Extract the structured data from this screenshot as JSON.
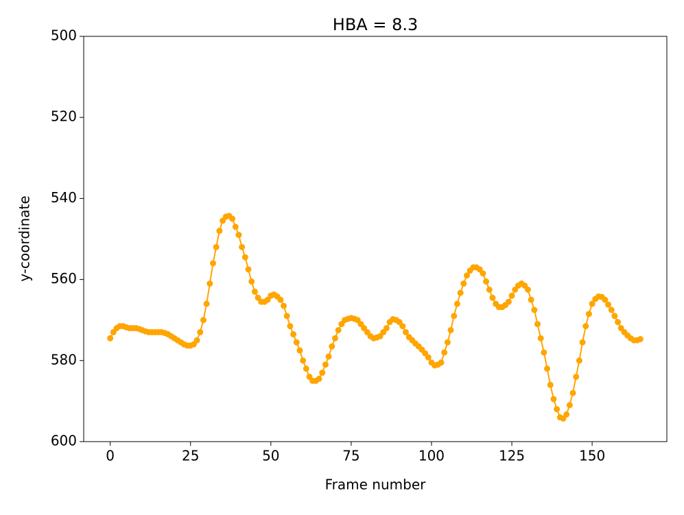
{
  "chart_data": {
    "type": "line",
    "title": "HBA = 8.3",
    "x_label": "Frame number",
    "y_label": "y-coordinate",
    "xlim": [
      -8.25,
      173.25
    ],
    "ylim": [
      600,
      500
    ],
    "xticks": [
      0,
      25,
      50,
      75,
      100,
      125,
      150
    ],
    "yticks": [
      500,
      520,
      540,
      560,
      580,
      600
    ],
    "color": "#ffa500",
    "markers": true,
    "x": [
      0,
      1,
      2,
      3,
      4,
      5,
      6,
      7,
      8,
      9,
      10,
      11,
      12,
      13,
      14,
      15,
      16,
      17,
      18,
      19,
      20,
      21,
      22,
      23,
      24,
      25,
      26,
      27,
      28,
      29,
      30,
      31,
      32,
      33,
      34,
      35,
      36,
      37,
      38,
      39,
      40,
      41,
      42,
      43,
      44,
      45,
      46,
      47,
      48,
      49,
      50,
      51,
      52,
      53,
      54,
      55,
      56,
      57,
      58,
      59,
      60,
      61,
      62,
      63,
      64,
      65,
      66,
      67,
      68,
      69,
      70,
      71,
      72,
      73,
      74,
      75,
      76,
      77,
      78,
      79,
      80,
      81,
      82,
      83,
      84,
      85,
      86,
      87,
      88,
      89,
      90,
      91,
      92,
      93,
      94,
      95,
      96,
      97,
      98,
      99,
      100,
      101,
      102,
      103,
      104,
      105,
      106,
      107,
      108,
      109,
      110,
      111,
      112,
      113,
      114,
      115,
      116,
      117,
      118,
      119,
      120,
      121,
      122,
      123,
      124,
      125,
      126,
      127,
      128,
      129,
      130,
      131,
      132,
      133,
      134,
      135,
      136,
      137,
      138,
      139,
      140,
      141,
      142,
      143,
      144,
      145,
      146,
      147,
      148,
      149,
      150,
      151,
      152,
      153,
      154,
      155,
      156,
      157,
      158,
      159,
      160,
      161,
      162,
      163,
      164,
      165
    ],
    "values": [
      574.5,
      573,
      572,
      571.5,
      571.5,
      571.8,
      572,
      572,
      572,
      572.2,
      572.5,
      572.8,
      573,
      573,
      573,
      573,
      573,
      573.2,
      573.5,
      574,
      574.5,
      575,
      575.5,
      576,
      576.3,
      576.3,
      576,
      575,
      573,
      570,
      566,
      561,
      556,
      552,
      548,
      545.5,
      544.5,
      544.3,
      545,
      547,
      549,
      552,
      554.5,
      557.5,
      560.5,
      563,
      564.5,
      565.5,
      565.5,
      565,
      564,
      563.7,
      564.2,
      565,
      566.5,
      569,
      571.5,
      573.5,
      575.5,
      577.5,
      580,
      582,
      584,
      585,
      585,
      584.5,
      583,
      581,
      579,
      576.5,
      574.5,
      572.5,
      571,
      570,
      569.7,
      569.5,
      569.7,
      570,
      571,
      572,
      573,
      574,
      574.5,
      574.3,
      574,
      573,
      572,
      570.5,
      569.8,
      570,
      570.5,
      571.5,
      573,
      574.2,
      575,
      575.8,
      576.5,
      577.3,
      578.2,
      579.2,
      580.5,
      581.2,
      581,
      580.5,
      578,
      575.5,
      572.5,
      569,
      566,
      563.3,
      561,
      559,
      557.8,
      557,
      557,
      557.5,
      558.5,
      560.5,
      562.5,
      564.5,
      566,
      566.8,
      566.8,
      566.3,
      565.5,
      564,
      562.5,
      561.5,
      561,
      561.5,
      562.5,
      565,
      567.5,
      571,
      574.5,
      578,
      582,
      586,
      589.5,
      592,
      594,
      594.3,
      593.3,
      591,
      588,
      584,
      580,
      575.5,
      571.5,
      568.5,
      566,
      564.8,
      564.2,
      564.3,
      565,
      566.2,
      567.5,
      569,
      570.5,
      572,
      573,
      573.8,
      574.5,
      575,
      575,
      574.7
    ]
  }
}
